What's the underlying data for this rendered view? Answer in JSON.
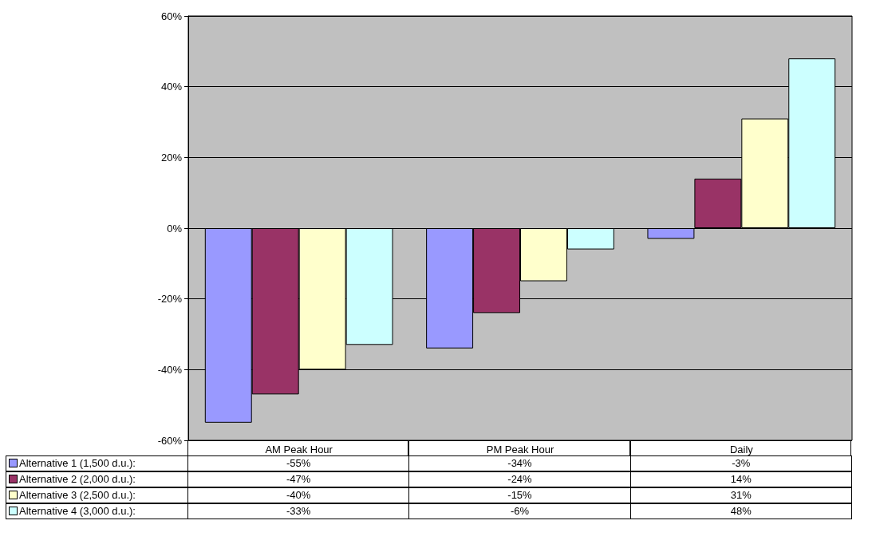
{
  "chart_data": {
    "type": "bar",
    "categories": [
      "AM Peak Hour",
      "PM Peak Hour",
      "Daily"
    ],
    "series": [
      {
        "name": "Alternative 1 (1,500 d.u.):",
        "color": "#9999ff",
        "values": [
          -55,
          -34,
          -3
        ],
        "value_labels": [
          "-55%",
          "-34%",
          "-3%"
        ]
      },
      {
        "name": "Alternative 2 (2,000 d.u.):",
        "color": "#993366",
        "values": [
          -47,
          -24,
          14
        ],
        "value_labels": [
          "-47%",
          "-24%",
          "14%"
        ]
      },
      {
        "name": "Alternative 3 (2,500 d.u.):",
        "color": "#ffffcc",
        "values": [
          -40,
          -15,
          31
        ],
        "value_labels": [
          "-40%",
          "-15%",
          "31%"
        ]
      },
      {
        "name": "Alternative 4 (3,000 d.u.):",
        "color": "#ccffff",
        "values": [
          -33,
          -6,
          48
        ],
        "value_labels": [
          "-33%",
          "-6%",
          "48%"
        ]
      }
    ],
    "ylim": [
      -60,
      60
    ],
    "yticks": [
      {
        "value": -60,
        "label": "-60%"
      },
      {
        "value": -40,
        "label": "-40%"
      },
      {
        "value": -20,
        "label": "-20%"
      },
      {
        "value": 0,
        "label": "0%"
      },
      {
        "value": 20,
        "label": "20%"
      },
      {
        "value": 40,
        "label": "40%"
      },
      {
        "value": 60,
        "label": "60%"
      }
    ],
    "grid": "y",
    "legend": "bottom"
  }
}
